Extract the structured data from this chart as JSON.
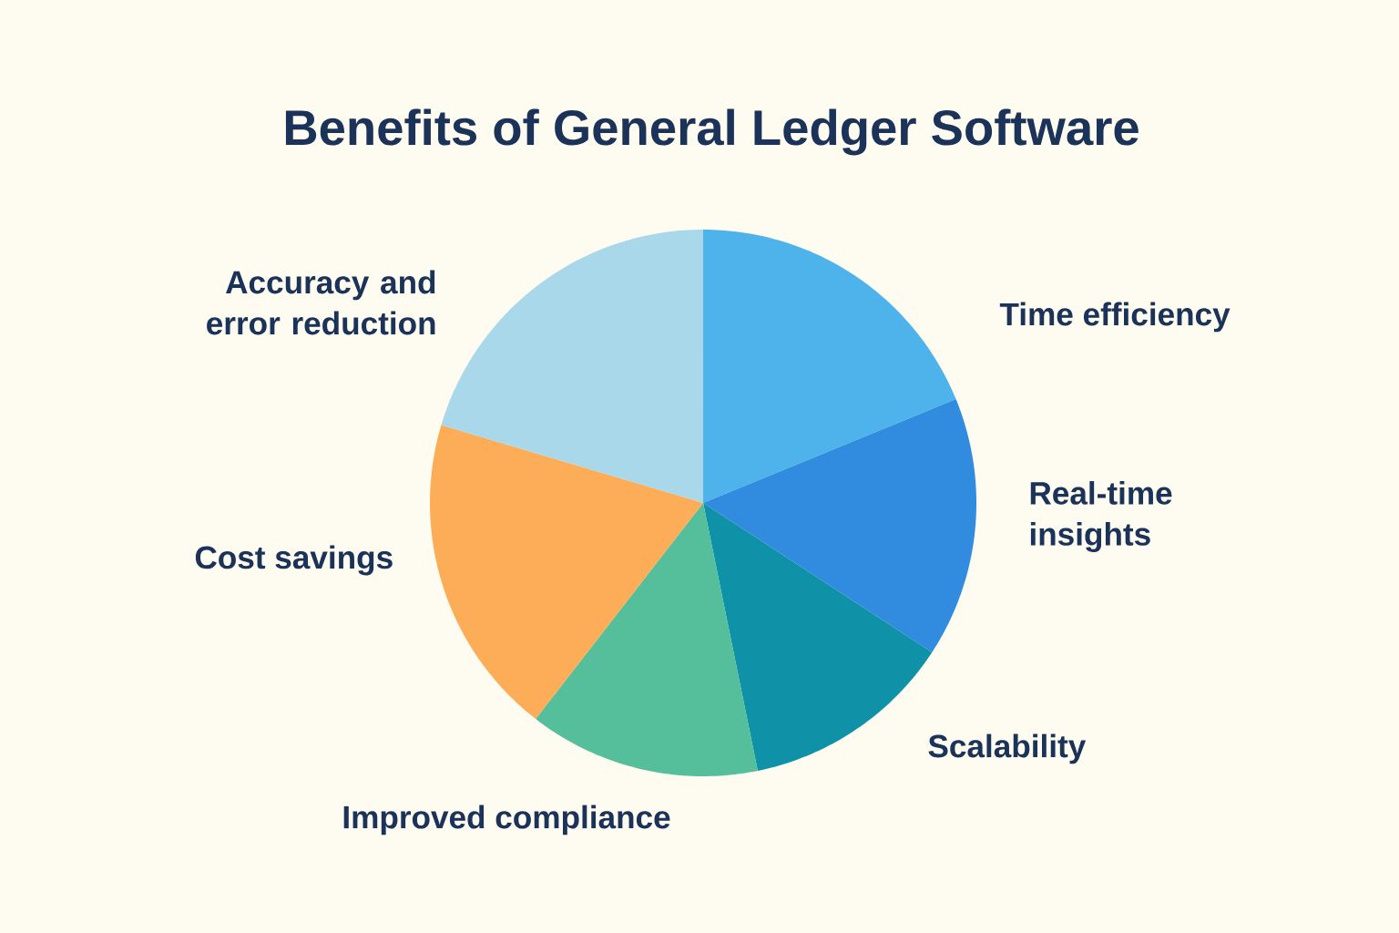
{
  "chart_data": {
    "type": "pie",
    "title": "Benefits of General Ledger Software",
    "categories": [
      "Time efficiency",
      "Real-time insights",
      "Scalability",
      "Improved compliance",
      "Cost savings",
      "Accuracy and error reduction"
    ],
    "values": [
      18.8,
      15.4,
      12.6,
      13.7,
      19.1,
      20.4
    ],
    "colors": [
      "#4db3ea",
      "#318ce0",
      "#0f91a8",
      "#55bf9b",
      "#fdad57",
      "#a8d8ea"
    ]
  }
}
